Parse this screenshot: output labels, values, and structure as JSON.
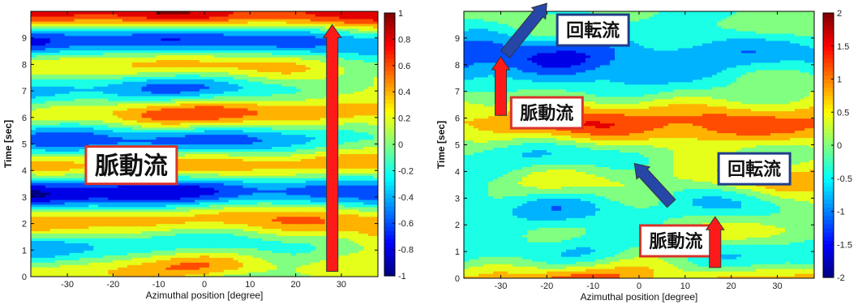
{
  "chart_data": [
    {
      "type": "heatmap",
      "title": "",
      "xlabel": "Azimuthal position [degree]",
      "ylabel": "Time [sec]",
      "xlim": [
        -38,
        38
      ],
      "ylim": [
        0,
        10
      ],
      "xticks": [
        -30,
        -20,
        -10,
        0,
        10,
        20,
        30
      ],
      "yticks": [
        0,
        1,
        2,
        3,
        4,
        5,
        6,
        7,
        8,
        9
      ],
      "colorbar": {
        "min": -1,
        "max": 1,
        "ticks": [
          -1,
          -0.8,
          -0.6,
          -0.4,
          -0.2,
          0,
          0.2,
          0.4,
          0.6,
          0.8,
          1
        ]
      },
      "annotations": [
        {
          "label": "脈動流",
          "kind": "pulsating",
          "x": -16,
          "y": 4.2,
          "color": "#d9342b"
        },
        {
          "label": "",
          "kind": "arrow",
          "x": 28,
          "y_from": 0.2,
          "y_to": 9.5,
          "color": "#ff1a1a"
        }
      ]
    },
    {
      "type": "heatmap",
      "title": "",
      "xlabel": "Azimuthal position [degree]",
      "ylabel": "Time [sec]",
      "xlim": [
        -38,
        38
      ],
      "ylim": [
        0,
        10
      ],
      "xticks": [
        -30,
        -20,
        -10,
        0,
        10,
        20,
        30
      ],
      "yticks": [
        0,
        1,
        2,
        3,
        4,
        5,
        6,
        7,
        8,
        9
      ],
      "colorbar": {
        "min": -2,
        "max": 2,
        "ticks": [
          -2,
          -1.5,
          -1,
          -0.5,
          0,
          0.5,
          1,
          1.5,
          2
        ],
        "clipped_labels": [
          "-0.5",
          "-1.5"
        ]
      },
      "annotations": [
        {
          "label": "回転流",
          "kind": "rotating",
          "x": -10,
          "y": 9.3,
          "color": "#1f3d8a"
        },
        {
          "label": "脈動流",
          "kind": "pulsating",
          "x": -20,
          "y": 6.2,
          "color": "#d9342b"
        },
        {
          "label": "回転流",
          "kind": "rotating",
          "x": 25,
          "y": 4.1,
          "color": "#1f3d8a"
        },
        {
          "label": "脈動流",
          "kind": "pulsating",
          "x": 8,
          "y": 1.4,
          "color": "#d9342b"
        },
        {
          "label": "",
          "kind": "arrow",
          "x": -30,
          "y_from": 6.1,
          "y_to": 8.3,
          "color": "#ff1a1a"
        },
        {
          "label": "",
          "kind": "arrow",
          "x": 16.5,
          "y_from": 0.4,
          "y_to": 2.3,
          "color": "#ff1a1a"
        },
        {
          "label": "",
          "kind": "arrow",
          "x_from": -29,
          "y_from": 8.4,
          "x_to": -20,
          "y_to": 10.3,
          "color": "#2646a8"
        },
        {
          "label": "",
          "kind": "arrow",
          "x_from": 7,
          "y_from": 2.8,
          "x_to": -1,
          "y_to": 4.3,
          "color": "#2646a8"
        }
      ]
    }
  ]
}
